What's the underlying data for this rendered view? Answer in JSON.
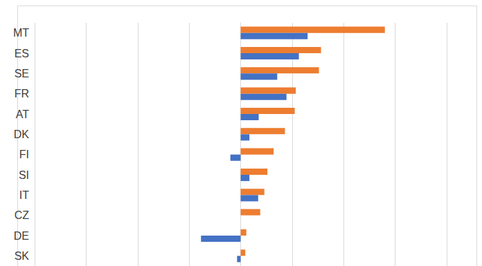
{
  "chart_data": {
    "type": "bar",
    "orientation": "horizontal",
    "categories": [
      "MT",
      "ES",
      "SE",
      "FR",
      "AT",
      "DK",
      "FI",
      "SI",
      "IT",
      "CZ",
      "DE",
      "SK"
    ],
    "series": [
      {
        "color": "#ed7d31",
        "values": [
          2.8,
          1.56,
          1.52,
          1.07,
          1.05,
          0.86,
          0.64,
          0.52,
          0.46,
          0.38,
          0.11,
          0.09
        ]
      },
      {
        "color": "#4472c4",
        "values": [
          1.3,
          1.13,
          0.71,
          0.89,
          0.35,
          0.17,
          -0.2,
          0.17,
          0.34,
          0,
          -0.77,
          -0.07
        ]
      }
    ],
    "xlim": [
      -4,
      4
    ],
    "xticks": [
      -4,
      -3,
      -2,
      -1,
      0,
      1,
      2,
      3,
      4
    ],
    "grid": true,
    "tick_labels": "y"
  }
}
